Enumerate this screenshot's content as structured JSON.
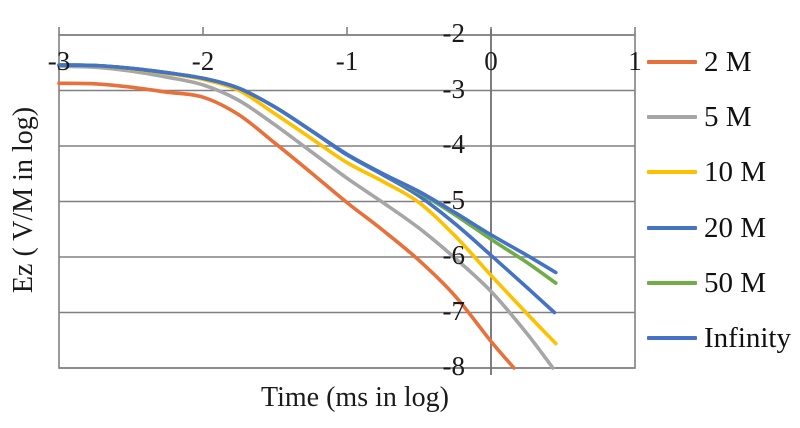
{
  "chart": {
    "x_axis_title": "Time (ms in log)",
    "y_axis_title": "Ez ( V/M in log)"
  },
  "legend": {
    "items": [
      {
        "label": "2 M",
        "color": "#E8703A"
      },
      {
        "label": "5 M",
        "color": "#A6A6A6"
      },
      {
        "label": "10 M",
        "color": "#FFC000"
      },
      {
        "label": "20 M",
        "color": "#4472C4"
      },
      {
        "label": "50 M",
        "color": "#70AD47"
      },
      {
        "label": "Infinity",
        "color": "#4472C4"
      }
    ]
  },
  "colors": {
    "grid": "#808080",
    "frame": "#808080",
    "axis": "#707070",
    "text": "#1a1a1a"
  },
  "chart_data": {
    "type": "line",
    "title": "",
    "xlabel": "Time (ms in log)",
    "ylabel": "Ez ( V/M in log)",
    "xlim": [
      -3,
      1
    ],
    "ylim": [
      -8,
      -2
    ],
    "x_ticks": [
      -3,
      -2,
      -1,
      0,
      1
    ],
    "y_ticks": [
      -2,
      -3,
      -4,
      -5,
      -6,
      -7,
      -8
    ],
    "grid": "horizontal-only",
    "x_axis_position": "top",
    "y_axis_crossing_x": 0,
    "legend_position": "right",
    "series": [
      {
        "name": "2 M",
        "color": "#E8703A",
        "x": [
          -3,
          -2.75,
          -2.5,
          -2.25,
          -2,
          -1.75,
          -1.5,
          -1.25,
          -1,
          -0.75,
          -0.5,
          -0.25,
          0,
          0.16
        ],
        "y": [
          -2.87,
          -2.88,
          -2.94,
          -3.03,
          -3.12,
          -3.44,
          -3.95,
          -4.48,
          -5.02,
          -5.52,
          -6.06,
          -6.7,
          -7.52,
          -8.0
        ]
      },
      {
        "name": "5 M",
        "color": "#A6A6A6",
        "x": [
          -3,
          -2.75,
          -2.5,
          -2.25,
          -2,
          -1.75,
          -1.5,
          -1.25,
          -1,
          -0.75,
          -0.5,
          -0.25,
          0,
          0.25,
          0.43
        ],
        "y": [
          -2.56,
          -2.58,
          -2.65,
          -2.76,
          -2.9,
          -3.18,
          -3.62,
          -4.1,
          -4.58,
          -5.02,
          -5.48,
          -6.02,
          -6.62,
          -7.38,
          -8.0
        ]
      },
      {
        "name": "10 M",
        "color": "#FFC000",
        "x": [
          -3,
          -2.75,
          -2.5,
          -2.25,
          -2,
          -1.75,
          -1.5,
          -1.25,
          -1,
          -0.75,
          -0.5,
          -0.25,
          0,
          0.25,
          0.45
        ],
        "y": [
          -2.54,
          -2.55,
          -2.61,
          -2.69,
          -2.8,
          -3.0,
          -3.42,
          -3.86,
          -4.3,
          -4.64,
          -5.02,
          -5.62,
          -6.33,
          -7.02,
          -7.56
        ]
      },
      {
        "name": "20 M",
        "color": "#4472C4",
        "x": [
          -3,
          -2.75,
          -2.5,
          -2.25,
          -2,
          -1.75,
          -1.5,
          -1.25,
          -1,
          -0.75,
          -0.5,
          -0.25,
          0,
          0.25,
          0.44
        ],
        "y": [
          -2.54,
          -2.55,
          -2.6,
          -2.68,
          -2.78,
          -2.96,
          -3.3,
          -3.72,
          -4.16,
          -4.52,
          -4.9,
          -5.4,
          -5.97,
          -6.55,
          -7.0
        ]
      },
      {
        "name": "50 M",
        "color": "#70AD47",
        "x": [
          -3,
          -2.75,
          -2.5,
          -2.25,
          -2,
          -1.75,
          -1.5,
          -1.25,
          -1,
          -0.75,
          -0.5,
          -0.25,
          0,
          0.25,
          0.45
        ],
        "y": [
          -2.54,
          -2.55,
          -2.6,
          -2.68,
          -2.78,
          -2.96,
          -3.3,
          -3.72,
          -4.15,
          -4.5,
          -4.84,
          -5.24,
          -5.68,
          -6.1,
          -6.47
        ]
      },
      {
        "name": "Infinity",
        "color": "#4472C4",
        "x": [
          -3,
          -2.75,
          -2.5,
          -2.25,
          -2,
          -1.75,
          -1.5,
          -1.25,
          -1,
          -0.75,
          -0.5,
          -0.25,
          0,
          0.25,
          0.45
        ],
        "y": [
          -2.54,
          -2.55,
          -2.6,
          -2.68,
          -2.78,
          -2.96,
          -3.3,
          -3.72,
          -4.15,
          -4.5,
          -4.82,
          -5.2,
          -5.6,
          -5.97,
          -6.28
        ]
      }
    ]
  }
}
